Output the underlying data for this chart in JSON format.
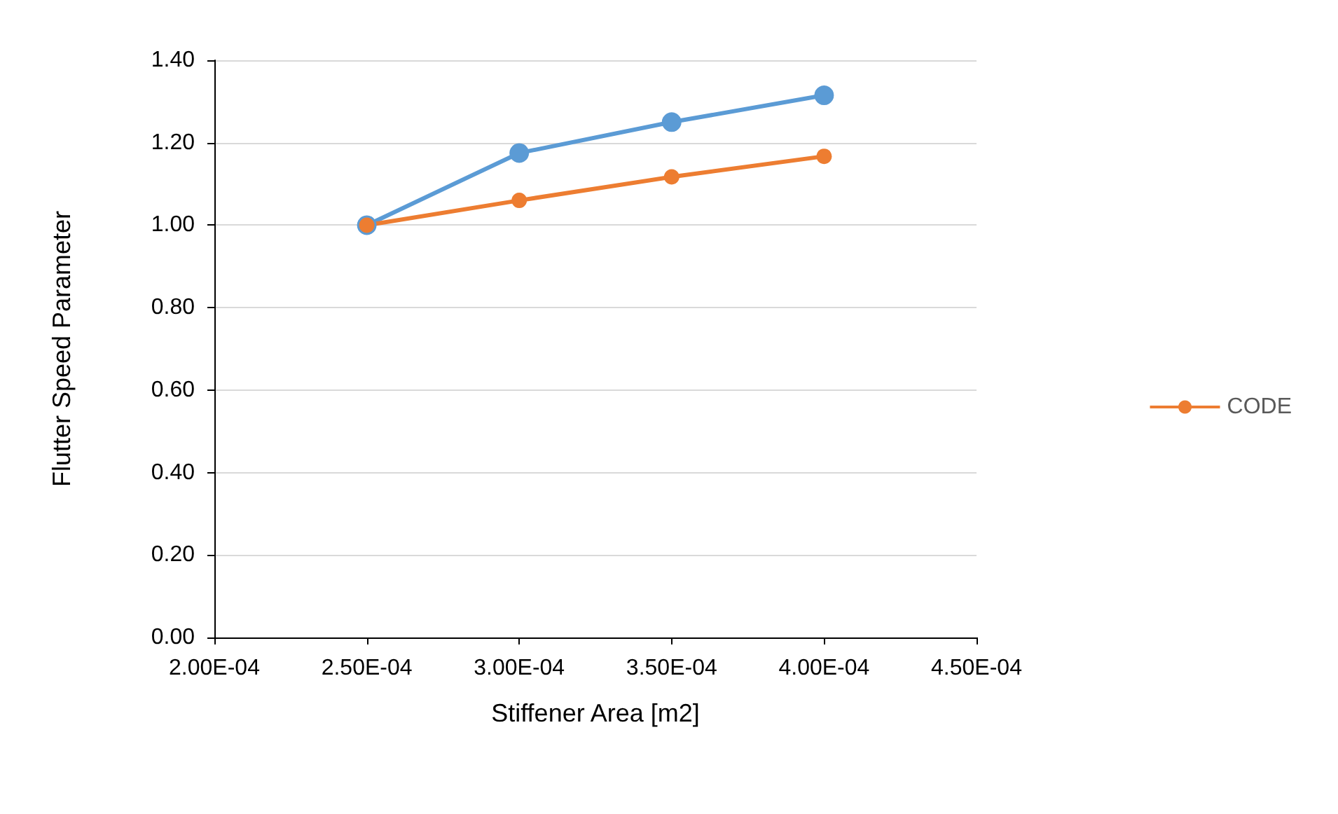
{
  "chart_data": {
    "type": "line",
    "xlabel": "Stiffener Area [m2]",
    "ylabel": "Flutter Speed Parameter",
    "x": [
      0.00025,
      0.0003,
      0.00035,
      0.0004
    ],
    "series": [
      {
        "color": "#5b9bd5",
        "values": [
          1.0,
          1.175,
          1.25,
          1.315
        ]
      },
      {
        "name": "CODE",
        "color": "#ed7d31",
        "values": [
          1.0,
          1.06,
          1.117,
          1.167
        ]
      }
    ],
    "xlim": [
      0.0002,
      0.00045
    ],
    "xticks": [
      {
        "value": 0.0002,
        "label": "2.00E-04"
      },
      {
        "value": 0.00025,
        "label": "2.50E-04"
      },
      {
        "value": 0.0003,
        "label": "3.00E-04"
      },
      {
        "value": 0.00035,
        "label": "3.50E-04"
      },
      {
        "value": 0.0004,
        "label": "4.00E-04"
      },
      {
        "value": 0.00045,
        "label": "4.50E-04"
      }
    ],
    "ylim": [
      0,
      1.4
    ],
    "yticks": [
      {
        "value": 0,
        "label": "0.00"
      },
      {
        "value": 0.2,
        "label": "0.20"
      },
      {
        "value": 0.4,
        "label": "0.40"
      },
      {
        "value": 0.6,
        "label": "0.60"
      },
      {
        "value": 0.8,
        "label": "0.80"
      },
      {
        "value": 1.0,
        "label": "1.00"
      },
      {
        "value": 1.2,
        "label": "1.20"
      },
      {
        "value": 1.4,
        "label": "1.40"
      }
    ],
    "grid": "y",
    "legend": "right",
    "marker": "circle",
    "line_style": "solid"
  }
}
